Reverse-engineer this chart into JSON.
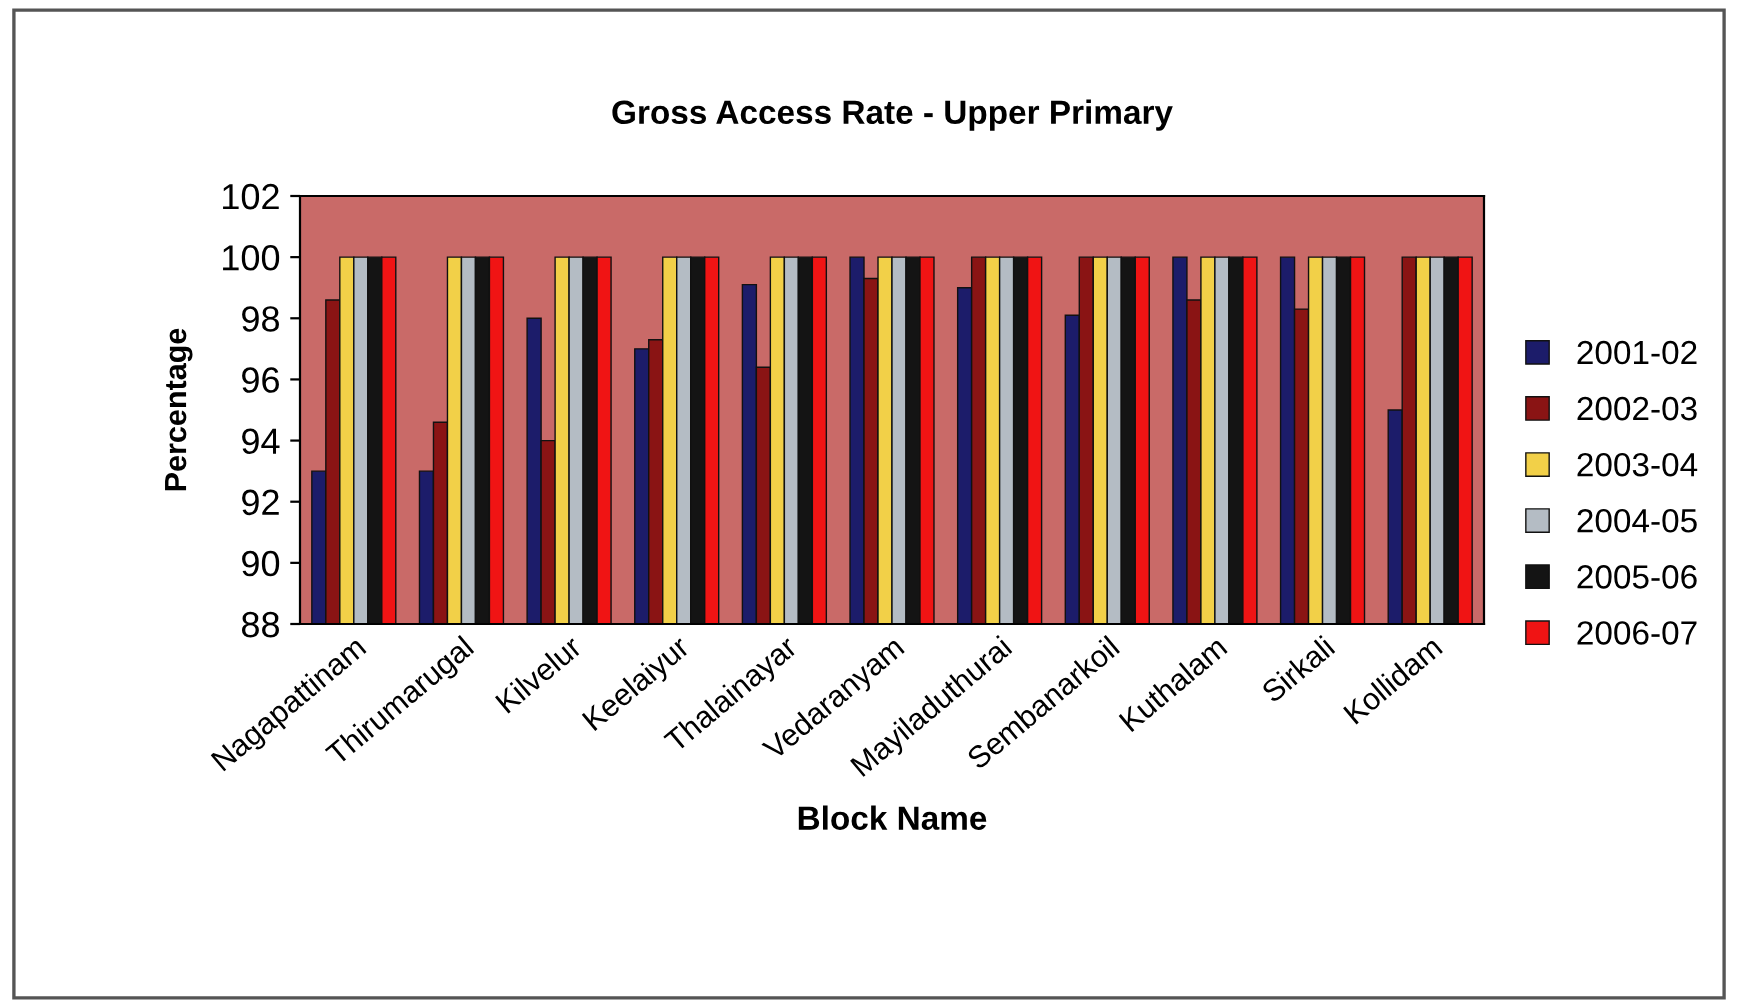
{
  "chart_data": {
    "type": "bar",
    "title": "Gross Access Rate - Upper Primary",
    "xlabel": "Block Name",
    "ylabel": "Percentage",
    "categories": [
      "Nagapattinam",
      "Thirumarugal",
      "Kilvelur",
      "Keelaiyur",
      "Thalainayar",
      "Vedaranyam",
      "Mayiladuthurai",
      "Sembanarkoil",
      "Kuthalam",
      "Sirkali",
      "Kollidam"
    ],
    "series": [
      {
        "name": "2001-02",
        "color": "#1c1c6a",
        "values": [
          93,
          93,
          98,
          97,
          99.1,
          100,
          99,
          98.1,
          100,
          100,
          95
        ]
      },
      {
        "name": "2002-03",
        "color": "#8a1414",
        "values": [
          98.6,
          94.6,
          94,
          97.3,
          96.4,
          99.3,
          100,
          100,
          98.6,
          98.3,
          100
        ]
      },
      {
        "name": "2003-04",
        "color": "#f2d048",
        "values": [
          100,
          100,
          100,
          100,
          100,
          100,
          100,
          100,
          100,
          100,
          100
        ]
      },
      {
        "name": "2004-05",
        "color": "#b4bcc4",
        "values": [
          100,
          100,
          100,
          100,
          100,
          100,
          100,
          100,
          100,
          100,
          100
        ]
      },
      {
        "name": "2005-06",
        "color": "#141414",
        "values": [
          100,
          100,
          100,
          100,
          100,
          100,
          100,
          100,
          100,
          100,
          100
        ]
      },
      {
        "name": "2006-07",
        "color": "#f01414",
        "values": [
          100,
          100,
          100,
          100,
          100,
          100,
          100,
          100,
          100,
          100,
          100
        ]
      }
    ],
    "ylim": [
      88,
      102
    ],
    "yticks": [
      88,
      90,
      92,
      94,
      96,
      98,
      100,
      102
    ],
    "grid": false,
    "legend": "right"
  }
}
